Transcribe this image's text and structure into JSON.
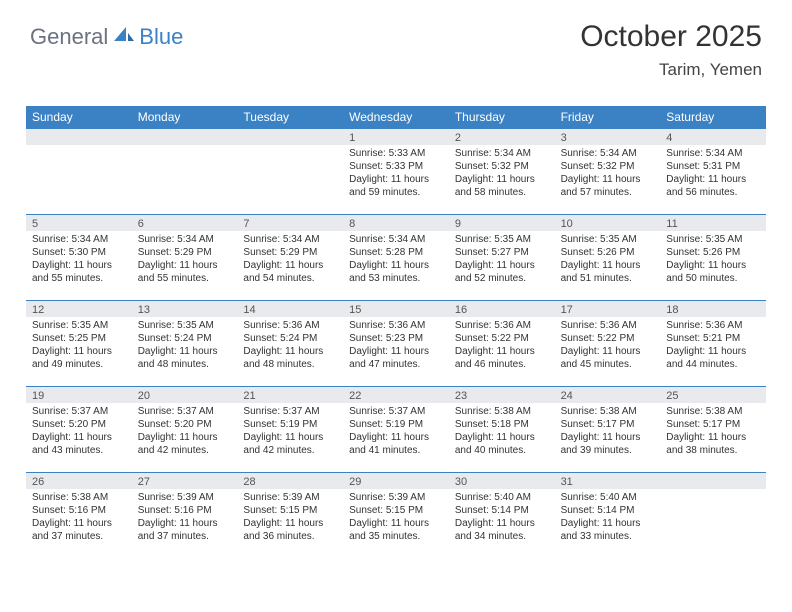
{
  "brand": {
    "text1": "General",
    "text2": "Blue",
    "color1": "#6b7280",
    "color2": "#3b82c4"
  },
  "header": {
    "title": "October 2025",
    "location": "Tarim, Yemen"
  },
  "theme": {
    "header_bg": "#3b82c4",
    "header_fg": "#ffffff",
    "daynum_bg": "#e8eaed",
    "border_color": "#3b82c4",
    "text_color": "#333333",
    "font_family": "Arial, Helvetica, sans-serif"
  },
  "weekdays": [
    "Sunday",
    "Monday",
    "Tuesday",
    "Wednesday",
    "Thursday",
    "Friday",
    "Saturday"
  ],
  "weeks": [
    [
      {
        "day": "",
        "lines": [
          "",
          "",
          "",
          ""
        ]
      },
      {
        "day": "",
        "lines": [
          "",
          "",
          "",
          ""
        ]
      },
      {
        "day": "",
        "lines": [
          "",
          "",
          "",
          ""
        ]
      },
      {
        "day": "1",
        "lines": [
          "Sunrise: 5:33 AM",
          "Sunset: 5:33 PM",
          "Daylight: 11 hours",
          "and 59 minutes."
        ]
      },
      {
        "day": "2",
        "lines": [
          "Sunrise: 5:34 AM",
          "Sunset: 5:32 PM",
          "Daylight: 11 hours",
          "and 58 minutes."
        ]
      },
      {
        "day": "3",
        "lines": [
          "Sunrise: 5:34 AM",
          "Sunset: 5:32 PM",
          "Daylight: 11 hours",
          "and 57 minutes."
        ]
      },
      {
        "day": "4",
        "lines": [
          "Sunrise: 5:34 AM",
          "Sunset: 5:31 PM",
          "Daylight: 11 hours",
          "and 56 minutes."
        ]
      }
    ],
    [
      {
        "day": "5",
        "lines": [
          "Sunrise: 5:34 AM",
          "Sunset: 5:30 PM",
          "Daylight: 11 hours",
          "and 55 minutes."
        ]
      },
      {
        "day": "6",
        "lines": [
          "Sunrise: 5:34 AM",
          "Sunset: 5:29 PM",
          "Daylight: 11 hours",
          "and 55 minutes."
        ]
      },
      {
        "day": "7",
        "lines": [
          "Sunrise: 5:34 AM",
          "Sunset: 5:29 PM",
          "Daylight: 11 hours",
          "and 54 minutes."
        ]
      },
      {
        "day": "8",
        "lines": [
          "Sunrise: 5:34 AM",
          "Sunset: 5:28 PM",
          "Daylight: 11 hours",
          "and 53 minutes."
        ]
      },
      {
        "day": "9",
        "lines": [
          "Sunrise: 5:35 AM",
          "Sunset: 5:27 PM",
          "Daylight: 11 hours",
          "and 52 minutes."
        ]
      },
      {
        "day": "10",
        "lines": [
          "Sunrise: 5:35 AM",
          "Sunset: 5:26 PM",
          "Daylight: 11 hours",
          "and 51 minutes."
        ]
      },
      {
        "day": "11",
        "lines": [
          "Sunrise: 5:35 AM",
          "Sunset: 5:26 PM",
          "Daylight: 11 hours",
          "and 50 minutes."
        ]
      }
    ],
    [
      {
        "day": "12",
        "lines": [
          "Sunrise: 5:35 AM",
          "Sunset: 5:25 PM",
          "Daylight: 11 hours",
          "and 49 minutes."
        ]
      },
      {
        "day": "13",
        "lines": [
          "Sunrise: 5:35 AM",
          "Sunset: 5:24 PM",
          "Daylight: 11 hours",
          "and 48 minutes."
        ]
      },
      {
        "day": "14",
        "lines": [
          "Sunrise: 5:36 AM",
          "Sunset: 5:24 PM",
          "Daylight: 11 hours",
          "and 48 minutes."
        ]
      },
      {
        "day": "15",
        "lines": [
          "Sunrise: 5:36 AM",
          "Sunset: 5:23 PM",
          "Daylight: 11 hours",
          "and 47 minutes."
        ]
      },
      {
        "day": "16",
        "lines": [
          "Sunrise: 5:36 AM",
          "Sunset: 5:22 PM",
          "Daylight: 11 hours",
          "and 46 minutes."
        ]
      },
      {
        "day": "17",
        "lines": [
          "Sunrise: 5:36 AM",
          "Sunset: 5:22 PM",
          "Daylight: 11 hours",
          "and 45 minutes."
        ]
      },
      {
        "day": "18",
        "lines": [
          "Sunrise: 5:36 AM",
          "Sunset: 5:21 PM",
          "Daylight: 11 hours",
          "and 44 minutes."
        ]
      }
    ],
    [
      {
        "day": "19",
        "lines": [
          "Sunrise: 5:37 AM",
          "Sunset: 5:20 PM",
          "Daylight: 11 hours",
          "and 43 minutes."
        ]
      },
      {
        "day": "20",
        "lines": [
          "Sunrise: 5:37 AM",
          "Sunset: 5:20 PM",
          "Daylight: 11 hours",
          "and 42 minutes."
        ]
      },
      {
        "day": "21",
        "lines": [
          "Sunrise: 5:37 AM",
          "Sunset: 5:19 PM",
          "Daylight: 11 hours",
          "and 42 minutes."
        ]
      },
      {
        "day": "22",
        "lines": [
          "Sunrise: 5:37 AM",
          "Sunset: 5:19 PM",
          "Daylight: 11 hours",
          "and 41 minutes."
        ]
      },
      {
        "day": "23",
        "lines": [
          "Sunrise: 5:38 AM",
          "Sunset: 5:18 PM",
          "Daylight: 11 hours",
          "and 40 minutes."
        ]
      },
      {
        "day": "24",
        "lines": [
          "Sunrise: 5:38 AM",
          "Sunset: 5:17 PM",
          "Daylight: 11 hours",
          "and 39 minutes."
        ]
      },
      {
        "day": "25",
        "lines": [
          "Sunrise: 5:38 AM",
          "Sunset: 5:17 PM",
          "Daylight: 11 hours",
          "and 38 minutes."
        ]
      }
    ],
    [
      {
        "day": "26",
        "lines": [
          "Sunrise: 5:38 AM",
          "Sunset: 5:16 PM",
          "Daylight: 11 hours",
          "and 37 minutes."
        ]
      },
      {
        "day": "27",
        "lines": [
          "Sunrise: 5:39 AM",
          "Sunset: 5:16 PM",
          "Daylight: 11 hours",
          "and 37 minutes."
        ]
      },
      {
        "day": "28",
        "lines": [
          "Sunrise: 5:39 AM",
          "Sunset: 5:15 PM",
          "Daylight: 11 hours",
          "and 36 minutes."
        ]
      },
      {
        "day": "29",
        "lines": [
          "Sunrise: 5:39 AM",
          "Sunset: 5:15 PM",
          "Daylight: 11 hours",
          "and 35 minutes."
        ]
      },
      {
        "day": "30",
        "lines": [
          "Sunrise: 5:40 AM",
          "Sunset: 5:14 PM",
          "Daylight: 11 hours",
          "and 34 minutes."
        ]
      },
      {
        "day": "31",
        "lines": [
          "Sunrise: 5:40 AM",
          "Sunset: 5:14 PM",
          "Daylight: 11 hours",
          "and 33 minutes."
        ]
      },
      {
        "day": "",
        "lines": [
          "",
          "",
          "",
          ""
        ]
      }
    ]
  ]
}
